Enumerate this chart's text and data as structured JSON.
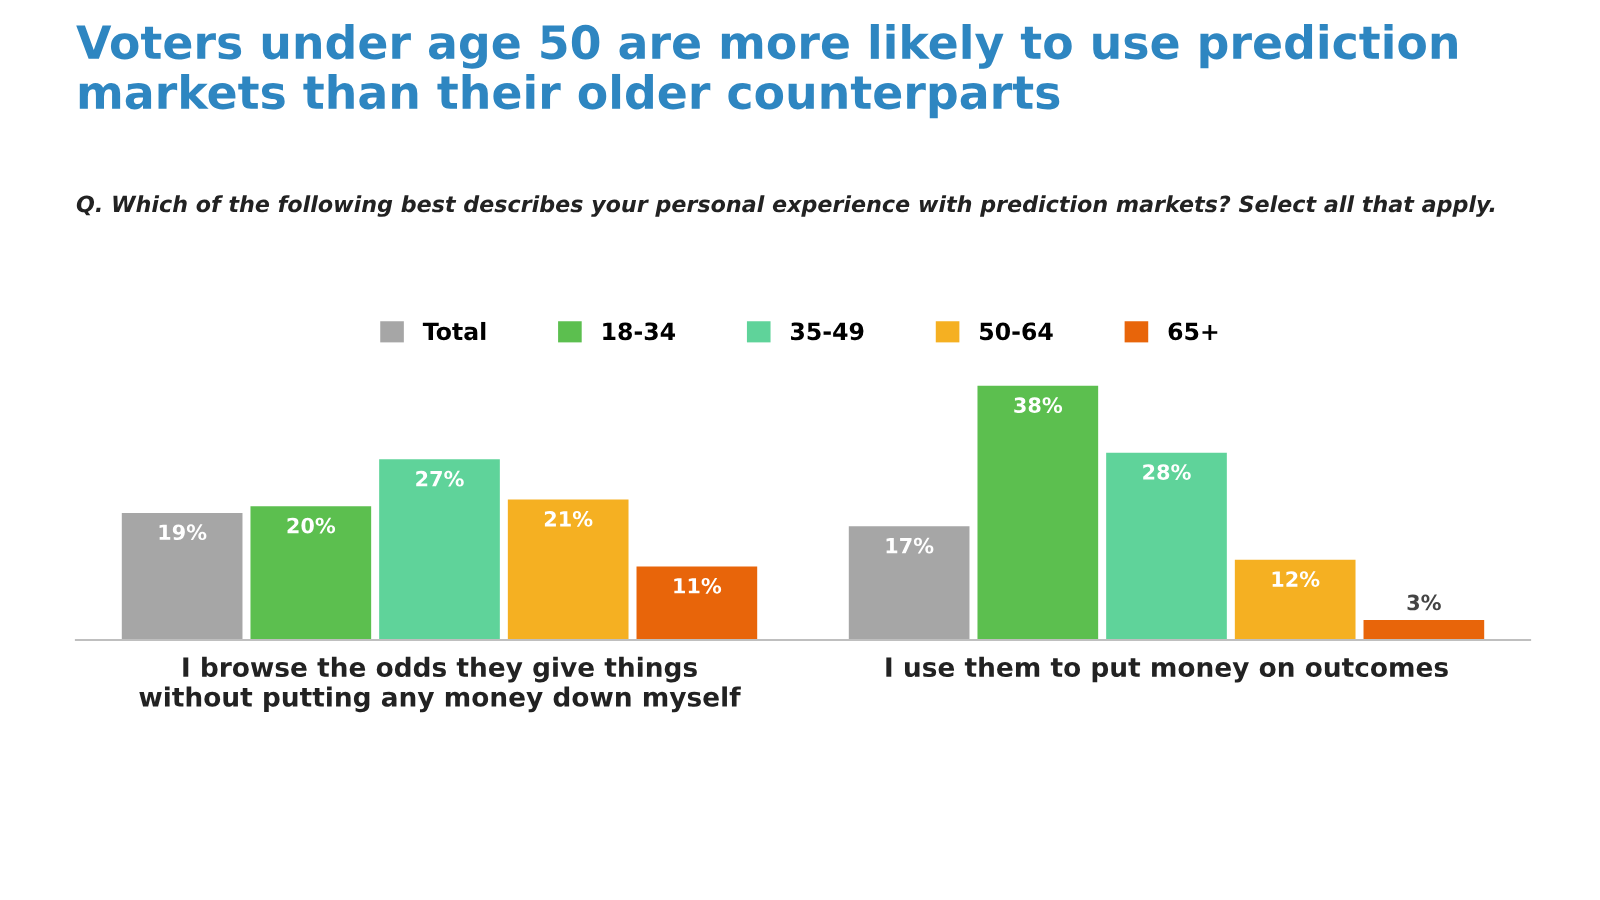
{
  "chart_data": {
    "type": "bar",
    "title": "Voters under age 50 are more likely to use prediction\nmarkets than their older counterparts",
    "subtitle": "Q. Which of the following best describes your personal experience with prediction markets? Select all that apply.",
    "categories": [
      "I browse the odds they give things\nwithout putting any money down myself",
      "I use them to put money on outcomes"
    ],
    "series": [
      {
        "name": "Total",
        "color": "#a6a6a6",
        "values": [
          19,
          17
        ],
        "value_labels": [
          "19%",
          "17%"
        ]
      },
      {
        "name": "18-34",
        "color": "#5cbf4f",
        "values": [
          20,
          38
        ],
        "value_labels": [
          "20%",
          "38%"
        ]
      },
      {
        "name": "35-49",
        "color": "#5fd39a",
        "values": [
          27,
          28
        ],
        "value_labels": [
          "27%",
          "28%"
        ]
      },
      {
        "name": "50-64",
        "color": "#f5b022",
        "values": [
          21,
          12
        ],
        "value_labels": [
          "21%",
          "12%"
        ]
      },
      {
        "name": "65+",
        "color": "#e8650a",
        "values": [
          11,
          3
        ],
        "value_labels": [
          "11%",
          "3%"
        ]
      }
    ],
    "legend": "top"
  }
}
